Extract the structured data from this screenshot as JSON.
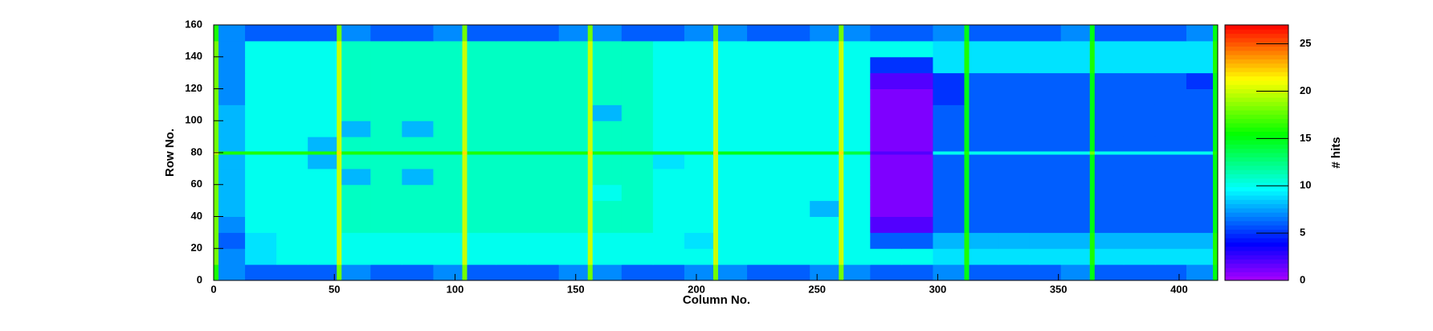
{
  "chart_data": {
    "type": "heatmap",
    "xlabel": "Column No.",
    "ylabel": "Row No.",
    "zlabel": "# hits",
    "xlim": [
      0,
      416
    ],
    "ylim": [
      0,
      160
    ],
    "zlim": [
      0,
      27
    ],
    "xticks": [
      0,
      50,
      100,
      150,
      200,
      250,
      300,
      350,
      400
    ],
    "yticks": [
      0,
      20,
      40,
      60,
      80,
      100,
      120,
      140,
      160
    ],
    "zticks": [
      0,
      5,
      10,
      15,
      20,
      25
    ],
    "xbins": [
      0,
      2,
      13,
      26,
      39,
      51,
      53,
      65,
      78,
      91,
      103,
      105,
      117,
      130,
      143,
      155,
      157,
      169,
      182,
      195,
      207,
      209,
      221,
      234,
      247,
      259,
      261,
      272,
      285,
      298,
      311,
      313,
      325,
      338,
      351,
      363,
      365,
      377,
      390,
      403,
      414,
      416
    ],
    "ybins": [
      0,
      10,
      20,
      30,
      40,
      50,
      60,
      70,
      79,
      81,
      90,
      100,
      110,
      120,
      130,
      140,
      150,
      160
    ],
    "z": [
      [
        16,
        7,
        6,
        6,
        6,
        18,
        7,
        6,
        6,
        7,
        18,
        6,
        6,
        6,
        7,
        18,
        7,
        6,
        6,
        7,
        18,
        7,
        6,
        6,
        7,
        18,
        7,
        6,
        6,
        7,
        15,
        6,
        6,
        6,
        7,
        15,
        6,
        6,
        6,
        7,
        15
      ],
      [
        18,
        7,
        9,
        10,
        10,
        20,
        10,
        10,
        10,
        10,
        20,
        10,
        10,
        10,
        10,
        20,
        10,
        10,
        10,
        10,
        20,
        10,
        10,
        10,
        10,
        20,
        10,
        10,
        10,
        9,
        16,
        9,
        9,
        9,
        9,
        16,
        9,
        9,
        9,
        9,
        16
      ],
      [
        18,
        6,
        9,
        10,
        10,
        20,
        10,
        10,
        10,
        10,
        20,
        10,
        10,
        10,
        10,
        20,
        10,
        10,
        10,
        9,
        20,
        10,
        10,
        10,
        10,
        20,
        10,
        6,
        6,
        8,
        16,
        8,
        8,
        8,
        8,
        16,
        8,
        8,
        8,
        8,
        16
      ],
      [
        18,
        7,
        10,
        10,
        10,
        20,
        11,
        11,
        11,
        11,
        20,
        11,
        11,
        11,
        11,
        20,
        11,
        11,
        10,
        10,
        20,
        10,
        10,
        10,
        10,
        20,
        10,
        2,
        2,
        6,
        15,
        6,
        6,
        6,
        6,
        15,
        6,
        6,
        6,
        6,
        15
      ],
      [
        18,
        8,
        10,
        10,
        10,
        20,
        11,
        11,
        11,
        11,
        20,
        11,
        11,
        11,
        11,
        20,
        11,
        11,
        10,
        10,
        20,
        10,
        10,
        10,
        8,
        20,
        10,
        1,
        1,
        6,
        15,
        6,
        6,
        6,
        6,
        15,
        6,
        6,
        6,
        6,
        15
      ],
      [
        18,
        8,
        10,
        10,
        10,
        20,
        11,
        11,
        11,
        11,
        20,
        11,
        11,
        11,
        11,
        20,
        10,
        11,
        10,
        10,
        20,
        10,
        10,
        10,
        10,
        20,
        10,
        1,
        1,
        6,
        15,
        6,
        6,
        6,
        6,
        15,
        6,
        6,
        6,
        6,
        15
      ],
      [
        18,
        8,
        10,
        10,
        10,
        20,
        8,
        11,
        8,
        11,
        20,
        11,
        11,
        11,
        11,
        20,
        11,
        11,
        10,
        10,
        20,
        10,
        10,
        10,
        10,
        20,
        10,
        1,
        1,
        6,
        15,
        6,
        6,
        6,
        6,
        15,
        6,
        6,
        6,
        6,
        15
      ],
      [
        18,
        8,
        10,
        10,
        8,
        20,
        11,
        11,
        11,
        11,
        20,
        11,
        11,
        11,
        11,
        20,
        11,
        11,
        9,
        10,
        20,
        10,
        10,
        10,
        10,
        20,
        10,
        1,
        1,
        6,
        15,
        6,
        6,
        6,
        6,
        15,
        6,
        6,
        6,
        6,
        15
      ],
      [
        20,
        16,
        16,
        16,
        16,
        22,
        16,
        16,
        16,
        16,
        22,
        16,
        16,
        16,
        16,
        22,
        16,
        16,
        16,
        16,
        22,
        15,
        15,
        15,
        15,
        22,
        14,
        2,
        2,
        10,
        16,
        10,
        10,
        10,
        10,
        18,
        10,
        10,
        10,
        10,
        16
      ],
      [
        18,
        8,
        10,
        10,
        8,
        20,
        11,
        11,
        11,
        11,
        20,
        11,
        11,
        11,
        11,
        20,
        11,
        11,
        10,
        10,
        20,
        10,
        10,
        10,
        10,
        20,
        10,
        1,
        1,
        6,
        15,
        6,
        6,
        6,
        6,
        15,
        6,
        6,
        6,
        6,
        15
      ],
      [
        18,
        8,
        10,
        10,
        10,
        20,
        8,
        11,
        8,
        11,
        20,
        11,
        11,
        11,
        11,
        20,
        11,
        11,
        10,
        10,
        20,
        10,
        10,
        10,
        10,
        20,
        10,
        1,
        1,
        6,
        15,
        6,
        6,
        6,
        6,
        15,
        6,
        6,
        6,
        6,
        15
      ],
      [
        18,
        8,
        10,
        10,
        10,
        20,
        11,
        11,
        11,
        11,
        20,
        11,
        11,
        11,
        11,
        20,
        8,
        11,
        10,
        10,
        20,
        10,
        10,
        10,
        10,
        20,
        10,
        1,
        1,
        6,
        15,
        6,
        6,
        6,
        6,
        15,
        6,
        6,
        6,
        6,
        15
      ],
      [
        18,
        7,
        10,
        10,
        10,
        20,
        11,
        11,
        11,
        11,
        20,
        11,
        11,
        11,
        11,
        20,
        11,
        11,
        10,
        10,
        20,
        10,
        10,
        10,
        10,
        20,
        10,
        1,
        1,
        5,
        15,
        6,
        6,
        6,
        6,
        15,
        6,
        6,
        6,
        6,
        15
      ],
      [
        18,
        7,
        10,
        10,
        10,
        20,
        11,
        11,
        11,
        11,
        20,
        11,
        11,
        11,
        11,
        20,
        11,
        11,
        10,
        10,
        20,
        10,
        10,
        10,
        10,
        20,
        10,
        2,
        2,
        5,
        15,
        6,
        6,
        6,
        6,
        15,
        6,
        6,
        6,
        5,
        15
      ],
      [
        18,
        7,
        10,
        10,
        10,
        20,
        11,
        11,
        11,
        11,
        20,
        11,
        11,
        11,
        11,
        20,
        11,
        11,
        10,
        10,
        20,
        10,
        10,
        10,
        10,
        20,
        10,
        5,
        5,
        9,
        16,
        9,
        9,
        9,
        9,
        16,
        9,
        9,
        9,
        9,
        16
      ],
      [
        18,
        7,
        10,
        10,
        10,
        20,
        11,
        11,
        11,
        11,
        20,
        11,
        11,
        11,
        11,
        20,
        11,
        11,
        10,
        10,
        20,
        10,
        10,
        10,
        10,
        20,
        10,
        10,
        10,
        9,
        16,
        9,
        9,
        9,
        9,
        16,
        9,
        9,
        9,
        9,
        16
      ],
      [
        16,
        7,
        6,
        6,
        6,
        18,
        7,
        6,
        6,
        7,
        18,
        6,
        6,
        6,
        7,
        18,
        7,
        6,
        6,
        7,
        18,
        7,
        6,
        6,
        7,
        18,
        7,
        6,
        6,
        7,
        15,
        6,
        6,
        6,
        7,
        15,
        6,
        6,
        6,
        7,
        15
      ]
    ]
  }
}
